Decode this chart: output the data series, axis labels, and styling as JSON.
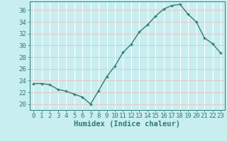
{
  "x": [
    0,
    1,
    2,
    3,
    4,
    5,
    6,
    7,
    8,
    9,
    10,
    11,
    12,
    13,
    14,
    15,
    16,
    17,
    18,
    19,
    20,
    21,
    22,
    23
  ],
  "y": [
    23.5,
    23.5,
    23.3,
    22.5,
    22.2,
    21.7,
    21.2,
    20.0,
    22.3,
    24.7,
    26.5,
    28.8,
    30.2,
    32.3,
    33.5,
    35.0,
    36.2,
    36.8,
    37.0,
    35.3,
    34.0,
    31.3,
    30.3,
    28.7
  ],
  "line_color": "#2e7d6e",
  "marker": "+",
  "bg_color": "#c8eef0",
  "grid_color": "#e8c8c8",
  "xlabel": "Humidex (Indice chaleur)",
  "ylabel": "",
  "ylim": [
    19,
    37.5
  ],
  "xlim": [
    -0.5,
    23.5
  ],
  "yticks": [
    20,
    22,
    24,
    26,
    28,
    30,
    32,
    34,
    36
  ],
  "xtick_labels": [
    "0",
    "1",
    "2",
    "3",
    "4",
    "5",
    "6",
    "7",
    "8",
    "9",
    "10",
    "11",
    "12",
    "13",
    "14",
    "15",
    "16",
    "17",
    "18",
    "19",
    "20",
    "21",
    "22",
    "23"
  ],
  "label_fontsize": 7.5,
  "tick_fontsize": 6.5
}
